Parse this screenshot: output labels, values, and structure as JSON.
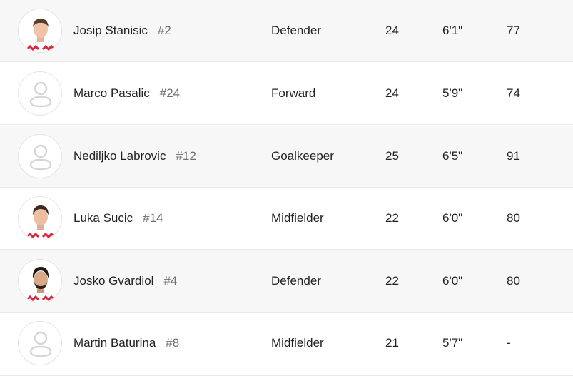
{
  "players": [
    {
      "name": "Josip Stanisic",
      "number": "#2",
      "position": "Defender",
      "age": "24",
      "height": "6'1\"",
      "rating": "77",
      "avatar": "photo-1"
    },
    {
      "name": "Marco Pasalic",
      "number": "#24",
      "position": "Forward",
      "age": "24",
      "height": "5'9\"",
      "rating": "74",
      "avatar": "placeholder"
    },
    {
      "name": "Nediljko Labrovic",
      "number": "#12",
      "position": "Goalkeeper",
      "age": "25",
      "height": "6'5\"",
      "rating": "91",
      "avatar": "placeholder"
    },
    {
      "name": "Luka Sucic",
      "number": "#14",
      "position": "Midfielder",
      "age": "22",
      "height": "6'0\"",
      "rating": "80",
      "avatar": "photo-2"
    },
    {
      "name": "Josko Gvardiol",
      "number": "#4",
      "position": "Defender",
      "age": "22",
      "height": "6'0\"",
      "rating": "80",
      "avatar": "photo-3"
    },
    {
      "name": "Martin Baturina",
      "number": "#8",
      "position": "Midfielder",
      "age": "21",
      "height": "5'7\"",
      "rating": "-",
      "avatar": "placeholder"
    }
  ],
  "colors": {
    "row_alt": "#f7f7f7",
    "row_white": "#ffffff",
    "text": "#222222",
    "number_text": "#6f6f6f",
    "kit_red": "#d7263d"
  }
}
